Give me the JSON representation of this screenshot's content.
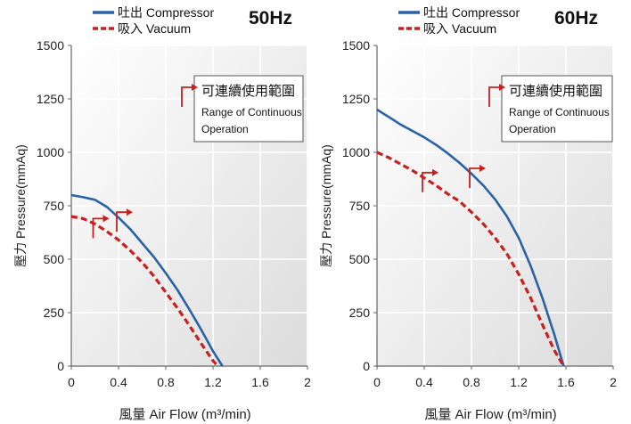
{
  "chart_data": [
    {
      "type": "line",
      "title": "50Hz",
      "xlabel": "風量  Air Flow (m³/min)",
      "ylabel": "壓力  Pressure(mmAq)",
      "xlim": [
        0,
        2
      ],
      "ylim": [
        0,
        1500
      ],
      "x_ticks": [
        "0",
        "0.4",
        "0.8",
        "1.2",
        "1.6",
        "2"
      ],
      "y_ticks": [
        "0",
        "250",
        "500",
        "750",
        "1000",
        "1250",
        "1500"
      ],
      "x_tick_values": [
        0,
        0.4,
        0.8,
        1.2,
        1.6,
        2
      ],
      "y_tick_values": [
        0,
        250,
        500,
        750,
        1000,
        1250,
        1500
      ],
      "grid": true,
      "legend_position": "top-left",
      "series": [
        {
          "name": "吐出 Compressor",
          "color": "#2a62a8",
          "style": "solid",
          "x": [
            0,
            0.1,
            0.2,
            0.3,
            0.4,
            0.5,
            0.6,
            0.7,
            0.8,
            0.9,
            1.0,
            1.1,
            1.2,
            1.28
          ],
          "y": [
            800,
            790,
            778,
            745,
            695,
            640,
            575,
            510,
            435,
            355,
            265,
            170,
            70,
            0
          ]
        },
        {
          "name": "吸入 Vacuum",
          "color": "#c8201e",
          "style": "dashed",
          "x": [
            0,
            0.1,
            0.2,
            0.3,
            0.4,
            0.5,
            0.6,
            0.7,
            0.8,
            0.9,
            1.0,
            1.1,
            1.2,
            1.24
          ],
          "y": [
            700,
            690,
            665,
            630,
            590,
            540,
            485,
            420,
            345,
            270,
            190,
            105,
            25,
            0
          ]
        }
      ],
      "annotation": {
        "lines": [
          "可連續使用範圍",
          "Range of Continuous",
          "Operation"
        ],
        "color": "#c8201e",
        "markers": [
          {
            "x": 0.4,
            "y": 695
          },
          {
            "x": 0.2,
            "y": 665
          }
        ]
      }
    },
    {
      "type": "line",
      "title": "60Hz",
      "xlabel": "風量  Air Flow (m³/min)",
      "ylabel": "壓力  Pressure(mmAq)",
      "xlim": [
        0,
        2
      ],
      "ylim": [
        0,
        1500
      ],
      "x_ticks": [
        "0",
        "0.4",
        "0.8",
        "1.2",
        "1.6",
        "2"
      ],
      "y_ticks": [
        "0",
        "250",
        "500",
        "750",
        "1000",
        "1250",
        "1500"
      ],
      "x_tick_values": [
        0,
        0.4,
        0.8,
        1.2,
        1.6,
        2
      ],
      "y_tick_values": [
        0,
        250,
        500,
        750,
        1000,
        1250,
        1500
      ],
      "grid": true,
      "legend_position": "top-left",
      "series": [
        {
          "name": "吐出 Compressor",
          "color": "#2a62a8",
          "style": "solid",
          "x": [
            0,
            0.1,
            0.2,
            0.3,
            0.4,
            0.5,
            0.6,
            0.7,
            0.8,
            0.9,
            1.0,
            1.1,
            1.2,
            1.3,
            1.4,
            1.5,
            1.58
          ],
          "y": [
            1200,
            1165,
            1130,
            1100,
            1070,
            1035,
            995,
            950,
            900,
            845,
            780,
            700,
            600,
            470,
            320,
            150,
            0
          ]
        },
        {
          "name": "吸入 Vacuum",
          "color": "#c8201e",
          "style": "dashed",
          "x": [
            0,
            0.1,
            0.2,
            0.3,
            0.4,
            0.5,
            0.6,
            0.7,
            0.8,
            0.9,
            1.0,
            1.1,
            1.2,
            1.3,
            1.4,
            1.5,
            1.58
          ],
          "y": [
            1000,
            975,
            945,
            915,
            880,
            845,
            805,
            770,
            720,
            665,
            600,
            525,
            430,
            320,
            195,
            75,
            0
          ]
        }
      ],
      "annotation": {
        "lines": [
          "可連續使用範圍",
          "Range of Continuous",
          "Operation"
        ],
        "color": "#c8201e",
        "markers": [
          {
            "x": 0.4,
            "y": 880
          },
          {
            "x": 0.8,
            "y": 900
          }
        ]
      }
    }
  ]
}
